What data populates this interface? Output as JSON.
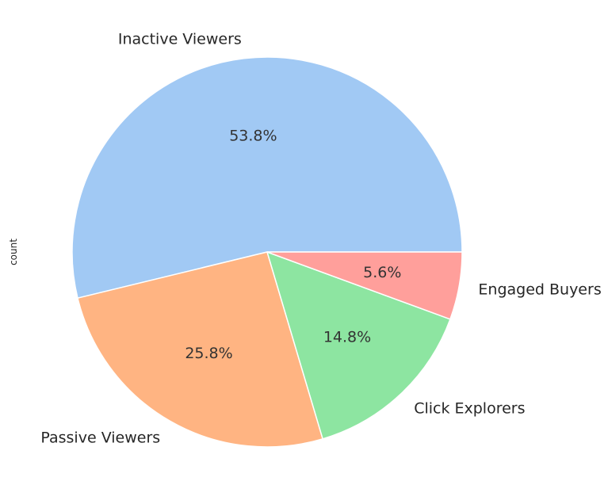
{
  "chart_data": {
    "type": "pie",
    "categories": [
      "Inactive Viewers",
      "Passive Viewers",
      "Click Explorers",
      "Engaged Buyers"
    ],
    "values": [
      53.8,
      25.8,
      14.8,
      5.6
    ],
    "percent_labels": [
      "53.8%",
      "25.8%",
      "14.8%",
      "5.6%"
    ],
    "colors": [
      "#a1c9f4",
      "#ffb482",
      "#8de5a1",
      "#ff9f9b"
    ],
    "title": "",
    "ylabel": "count",
    "xlabel": "",
    "start_angle": "0 degrees (3 o'clock)",
    "direction": "counter-clockwise",
    "legend": "none"
  }
}
